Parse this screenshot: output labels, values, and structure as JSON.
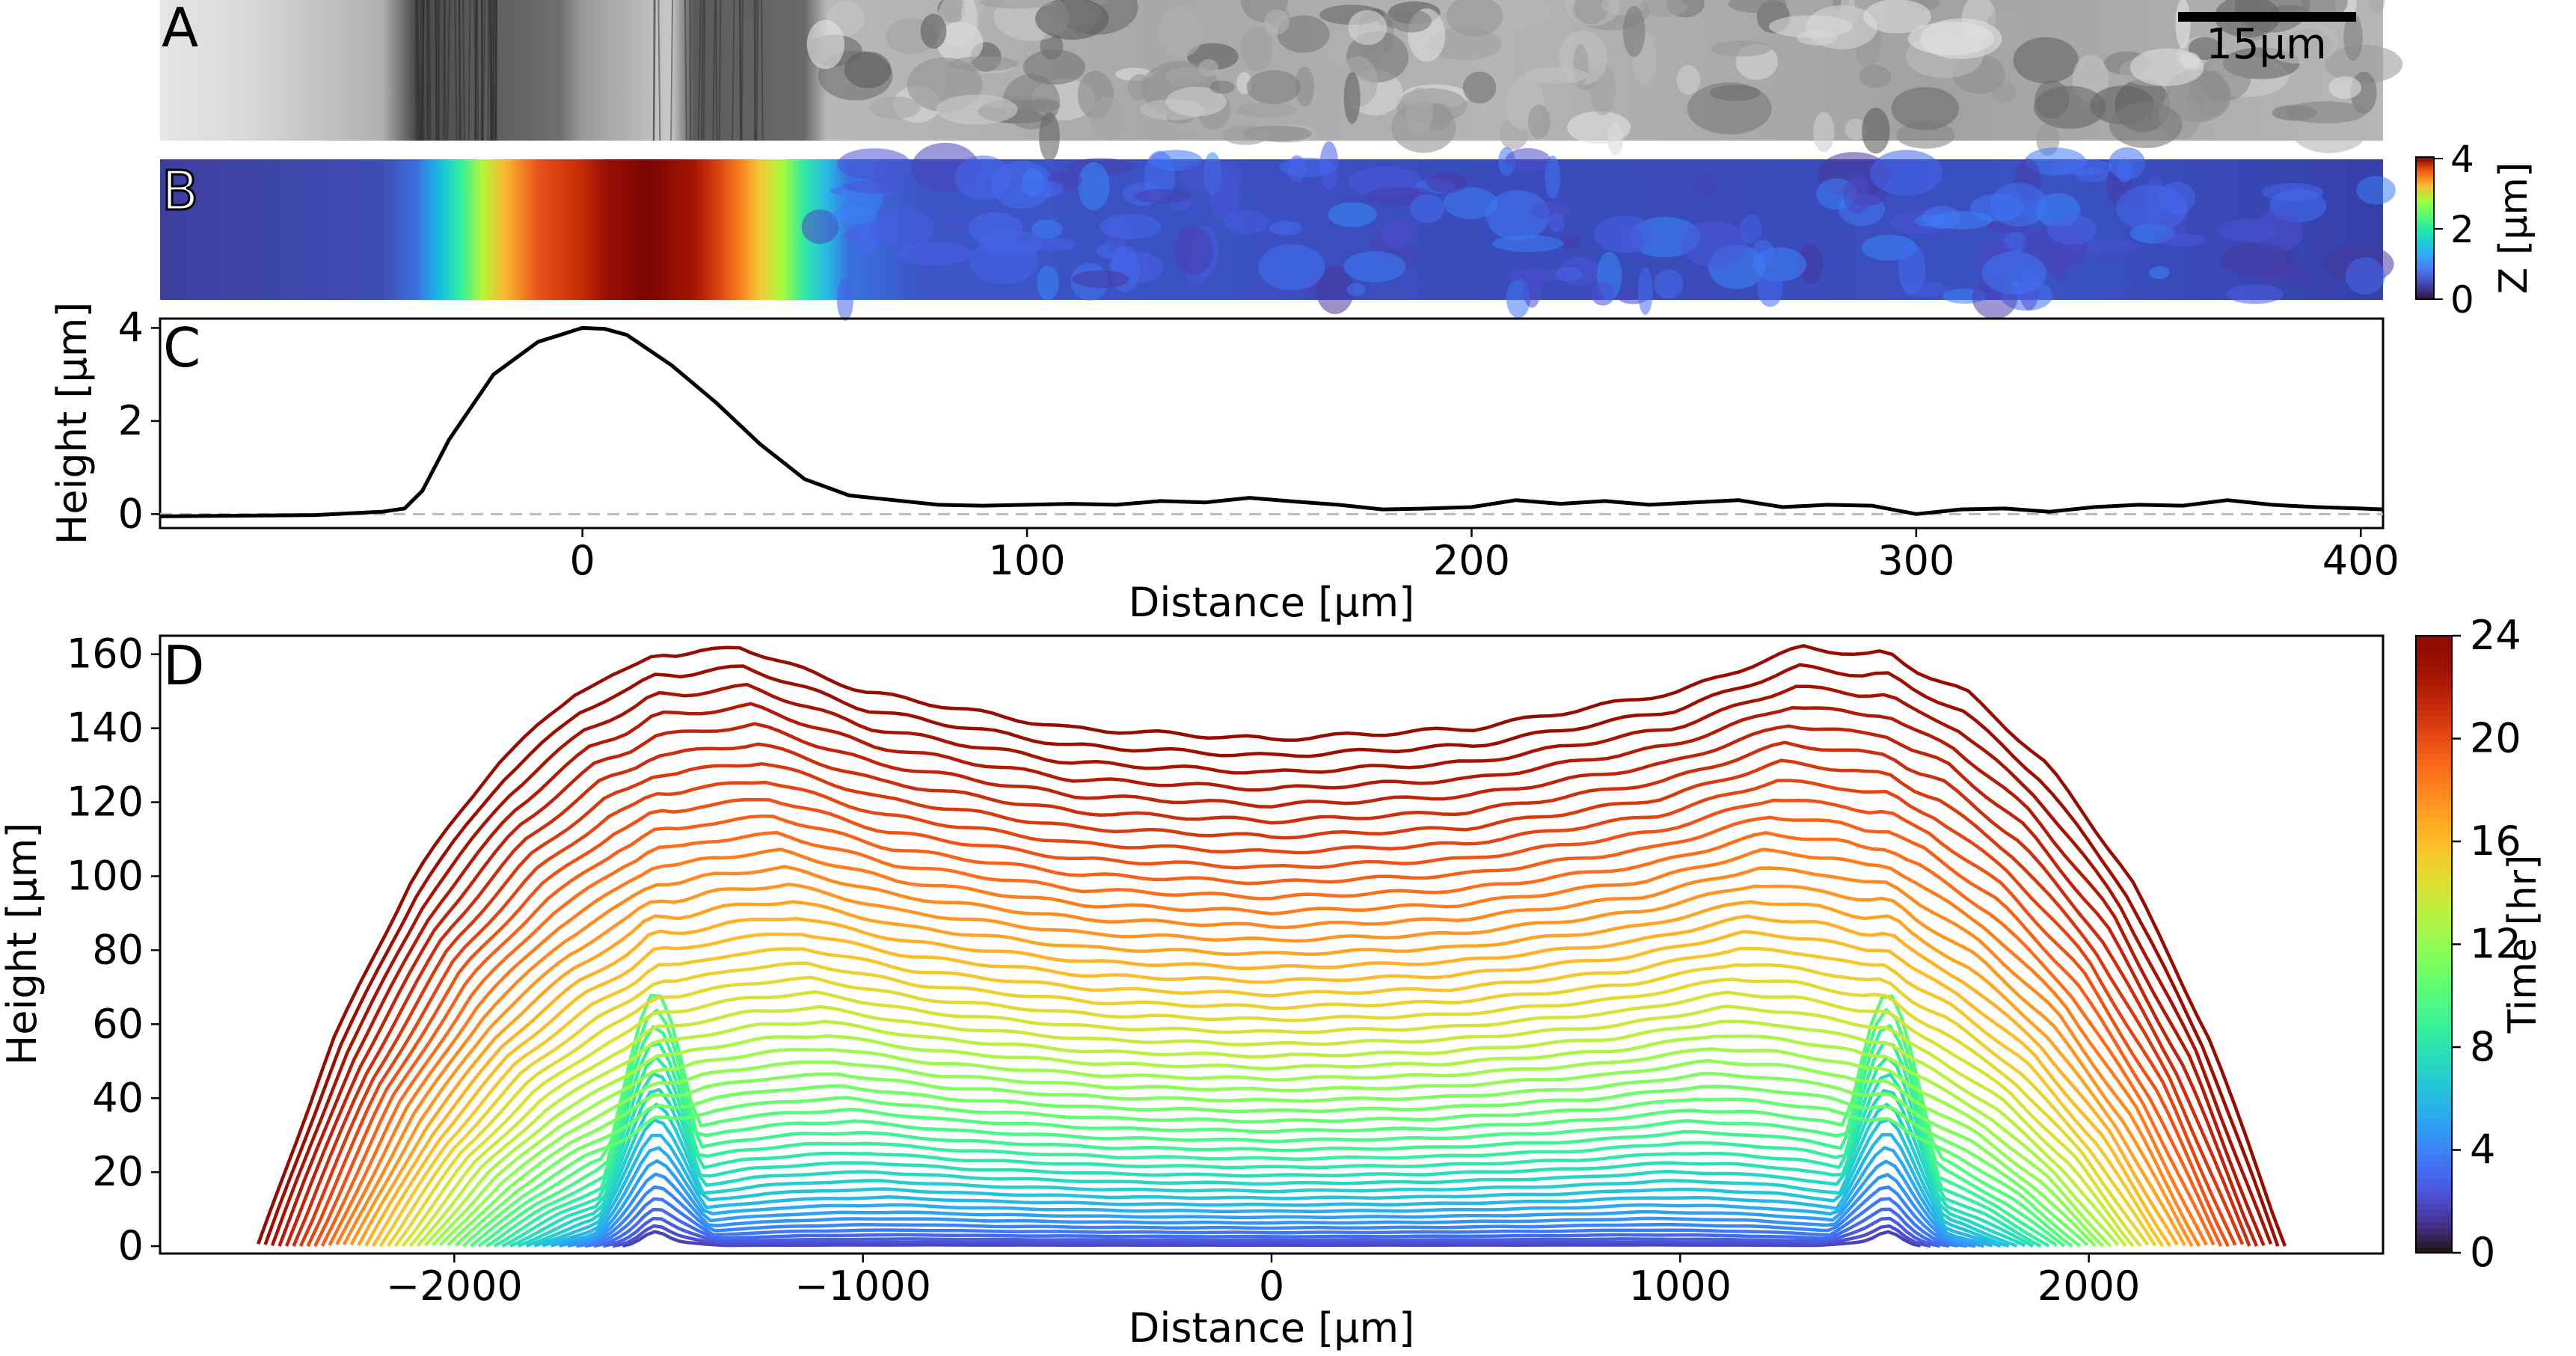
{
  "panel_labels": {
    "a": "A",
    "b": "B",
    "c": "C",
    "d": "D"
  },
  "scale_bar": {
    "label": "15μm"
  },
  "colors": {
    "axis": "#000000",
    "profile": "#000000",
    "baseline_dashed": "#bbbbbb",
    "microscopy_light": "#d9d9d9",
    "microscopy_dark": "#3a3a3a",
    "heatmap_low": "#30123b",
    "heatmap_high": "#7a0403"
  },
  "colorbar_b": {
    "label": "Z [μm]",
    "ticks": [
      "0",
      "2",
      "4"
    ],
    "range": [
      0,
      4
    ]
  },
  "colorbar_d": {
    "label": "Time [hr]",
    "ticks": [
      "0",
      "4",
      "8",
      "12",
      "16",
      "20",
      "24"
    ],
    "range": [
      0,
      24
    ],
    "colormap": "turbo"
  },
  "chart_data": [
    {
      "panel": "C",
      "type": "line",
      "xlabel": "Distance [μm]",
      "ylabel": "Height [μm]",
      "xlim": [
        -95,
        405
      ],
      "ylim": [
        -0.3,
        4.2
      ],
      "xticks": [
        0,
        100,
        200,
        300,
        400
      ],
      "xtick_labels": [
        "0",
        "100",
        "200",
        "300",
        "400"
      ],
      "yticks": [
        0,
        2,
        4
      ],
      "ytick_labels": [
        "0",
        "2",
        "4"
      ],
      "baseline": 0,
      "series": [
        {
          "x": [
            -95,
            -60,
            -45,
            -40,
            -36,
            -30,
            -20,
            -10,
            0,
            5,
            10,
            20,
            30,
            40,
            50,
            60,
            70,
            80,
            90,
            100,
            110,
            120,
            130,
            140,
            150,
            160,
            170,
            180,
            190,
            200,
            210,
            220,
            230,
            240,
            250,
            260,
            270,
            280,
            290,
            300,
            310,
            320,
            330,
            340,
            350,
            360,
            370,
            380,
            390,
            400,
            405
          ],
          "y": [
            -0.05,
            -0.02,
            0.05,
            0.12,
            0.5,
            1.6,
            3.0,
            3.7,
            4.0,
            3.98,
            3.85,
            3.2,
            2.4,
            1.5,
            0.75,
            0.4,
            0.3,
            0.2,
            0.18,
            0.2,
            0.22,
            0.2,
            0.28,
            0.25,
            0.35,
            0.27,
            0.2,
            0.1,
            0.12,
            0.15,
            0.3,
            0.22,
            0.28,
            0.2,
            0.25,
            0.3,
            0.15,
            0.2,
            0.18,
            0.0,
            0.1,
            0.12,
            0.05,
            0.15,
            0.2,
            0.18,
            0.3,
            0.2,
            0.15,
            0.12,
            0.1
          ]
        }
      ]
    },
    {
      "panel": "D",
      "type": "line",
      "xlabel": "Distance [μm]",
      "ylabel": "Height [μm]",
      "xlim": [
        -2720,
        2720
      ],
      "ylim": [
        -2,
        165
      ],
      "xticks": [
        -2000,
        -1000,
        0,
        1000,
        2000
      ],
      "xtick_labels": [
        "−2000",
        "−1000",
        "0",
        "1000",
        "2000"
      ],
      "yticks": [
        0,
        20,
        40,
        60,
        80,
        100,
        120,
        140,
        160
      ],
      "ytick_labels": [
        "0",
        "20",
        "40",
        "60",
        "80",
        "100",
        "120",
        "140",
        "160"
      ],
      "series_count": 48,
      "time_start_hr": 0.5,
      "time_step_hr": 0.5,
      "final_profile": {
        "edge_x": [
          -2480,
          2480
        ],
        "x": [
          -2480,
          -2300,
          -2100,
          -1900,
          -1700,
          -1500,
          -1300,
          -1000,
          -500,
          0,
          500,
          1000,
          1300,
          1500,
          1700,
          1900,
          2100,
          2300,
          2480
        ],
        "y": [
          0,
          55,
          100,
          130,
          150,
          159,
          162,
          150,
          140,
          137,
          140,
          150,
          162,
          159,
          150,
          130,
          100,
          55,
          0
        ]
      },
      "initial_profile": {
        "edge_x": [
          -1560,
          1560
        ],
        "bump_x": [
          -1510,
          1510
        ],
        "bump_height": 3
      }
    }
  ]
}
